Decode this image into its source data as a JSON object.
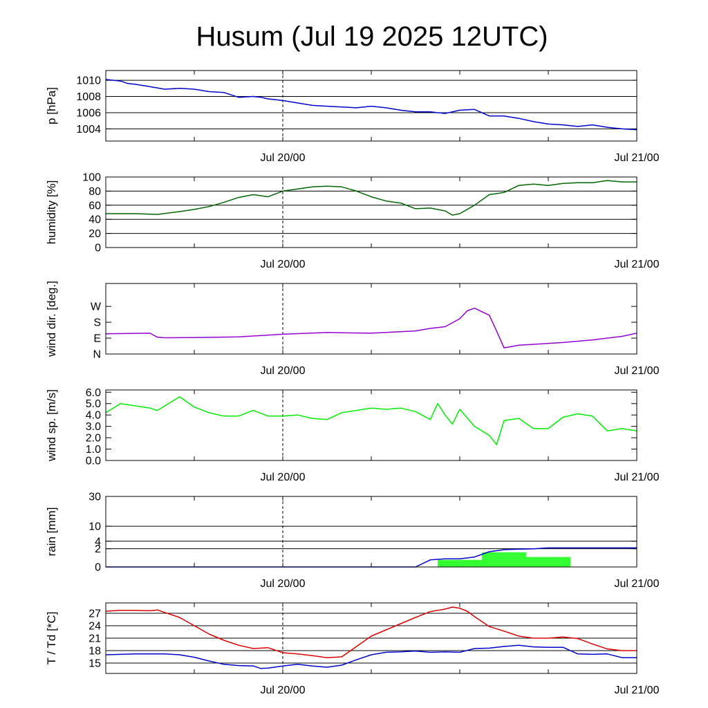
{
  "title": "Husum (Jul 19 2025 12UTC)",
  "colors": {
    "pressure": "#0000cc",
    "humidity": "#006400",
    "wind_dir": "#9400d3",
    "wind_speed": "#00ee00",
    "rain_bar": "#33ff33",
    "rain_sum": "#0000cc",
    "temperature": "#dd0000",
    "dewpoint": "#0000cc",
    "grid": "#000000"
  },
  "chart_data": [
    {
      "type": "line",
      "ylabel": "p [hPa]",
      "x_tick_labels": [
        "Jul 20/00",
        "Jul 21/00"
      ],
      "x_range_hours": [
        0,
        36
      ],
      "ylim": [
        1002.5,
        1011.2
      ],
      "yticks": [
        1004,
        1006,
        1008,
        1010
      ],
      "ytick_labels": [
        "1004",
        "1006",
        "1008",
        "1010"
      ],
      "grid": true,
      "series": [
        {
          "color_key": "pressure",
          "x": [
            0,
            0.5,
            1,
            1.5,
            2,
            3,
            4,
            5,
            6,
            7,
            8,
            9,
            10,
            10.5,
            11,
            12,
            13,
            14,
            15,
            16,
            17,
            18,
            19,
            20,
            21,
            22,
            23,
            24,
            25,
            26,
            27,
            28,
            29,
            30,
            31,
            32,
            33,
            34,
            35,
            36
          ],
          "y": [
            1010.1,
            1010.0,
            1009.9,
            1009.6,
            1009.5,
            1009.2,
            1008.9,
            1009.0,
            1008.9,
            1008.6,
            1008.5,
            1007.9,
            1008.0,
            1007.9,
            1007.7,
            1007.5,
            1007.2,
            1006.9,
            1006.8,
            1006.7,
            1006.6,
            1006.8,
            1006.6,
            1006.3,
            1006.1,
            1006.1,
            1005.9,
            1006.3,
            1006.4,
            1005.6,
            1005.6,
            1005.3,
            1004.9,
            1004.6,
            1004.5,
            1004.3,
            1004.5,
            1004.2,
            1004.0,
            1003.9
          ]
        }
      ]
    },
    {
      "type": "line",
      "ylabel": "humidity [%]",
      "x_tick_labels": [
        "Jul 20/00",
        "Jul 21/00"
      ],
      "x_range_hours": [
        0,
        36
      ],
      "ylim": [
        0,
        100
      ],
      "yticks": [
        0,
        20,
        40,
        60,
        80,
        100
      ],
      "ytick_labels": [
        "0",
        "20",
        "40",
        "60",
        "80",
        "100"
      ],
      "grid": true,
      "series": [
        {
          "color_key": "humidity",
          "x": [
            0,
            2,
            3.5,
            5,
            6,
            7,
            8,
            9,
            10,
            11,
            12,
            14,
            15,
            16,
            17,
            18,
            19,
            20,
            21,
            22,
            23,
            23.5,
            24,
            25,
            26,
            27,
            28,
            29,
            30,
            31,
            32,
            33,
            34,
            35,
            36
          ],
          "y": [
            48,
            48,
            47,
            51,
            54,
            58,
            64,
            71,
            75,
            72,
            80,
            86,
            87,
            86,
            80,
            72,
            66,
            63,
            55,
            56,
            52,
            46,
            48,
            60,
            75,
            78,
            88,
            90,
            88,
            91,
            92,
            92,
            95,
            93,
            93
          ]
        }
      ]
    },
    {
      "type": "line",
      "ylabel": "wind dir. [deg.]",
      "x_tick_labels": [
        "Jul 20/00",
        "Jul 21/00"
      ],
      "x_range_hours": [
        0,
        36
      ],
      "ylim": [
        0,
        400
      ],
      "yticks": [
        0,
        90,
        180,
        270
      ],
      "ytick_labels": [
        "N",
        "E",
        "S",
        "W"
      ],
      "grid": false,
      "series": [
        {
          "color_key": "wind_dir",
          "x": [
            0,
            3,
            3.5,
            4,
            6,
            9,
            12,
            15,
            18,
            21,
            22,
            23,
            24,
            24.5,
            25,
            25.5,
            26,
            26.5,
            27,
            28,
            29,
            31,
            33,
            35,
            36
          ],
          "y": [
            115,
            118,
            95,
            92,
            93,
            97,
            112,
            122,
            118,
            131,
            145,
            155,
            200,
            245,
            260,
            240,
            220,
            130,
            35,
            50,
            55,
            65,
            80,
            100,
            118
          ]
        }
      ]
    },
    {
      "type": "line",
      "ylabel": "wind sp. [m/s]",
      "x_tick_labels": [
        "Jul 20/00",
        "Jul 21/00"
      ],
      "x_range_hours": [
        0,
        36
      ],
      "ylim": [
        0,
        6.2
      ],
      "yticks": [
        0,
        1,
        2,
        3,
        4,
        5,
        6
      ],
      "ytick_labels": [
        "0.0",
        "1.0",
        "2.0",
        "3.0",
        "4.0",
        "5.0",
        "6.0"
      ],
      "grid": false,
      "series": [
        {
          "color_key": "wind_speed",
          "x": [
            0,
            1,
            2,
            3,
            3.5,
            4,
            5,
            6,
            7,
            8,
            9,
            10,
            11,
            12,
            13,
            14,
            15,
            16,
            17,
            18,
            19,
            20,
            21,
            22,
            22.5,
            23,
            23.5,
            24,
            25,
            26,
            26.5,
            27,
            28,
            29,
            30,
            31,
            32,
            33,
            34,
            35,
            36
          ],
          "y": [
            4.2,
            5.0,
            4.8,
            4.6,
            4.4,
            4.8,
            5.6,
            4.7,
            4.2,
            3.9,
            3.9,
            4.4,
            3.9,
            3.9,
            4.0,
            3.7,
            3.6,
            4.2,
            4.4,
            4.6,
            4.5,
            4.6,
            4.3,
            3.6,
            5.0,
            4.0,
            3.2,
            4.5,
            3.0,
            2.2,
            1.4,
            3.5,
            3.7,
            2.8,
            2.8,
            3.8,
            4.1,
            3.9,
            2.6,
            2.8,
            2.6
          ]
        }
      ]
    },
    {
      "type": "bar",
      "ylabel": "rain [mm]",
      "x_tick_labels": [
        "Jul 20/00",
        "Jul 21/00"
      ],
      "x_range_hours": [
        0,
        36
      ],
      "y_scale": "sqrt",
      "ylim": [
        0,
        30
      ],
      "yticks": [
        0,
        2,
        4,
        10,
        30
      ],
      "ytick_labels": [
        "0",
        "2",
        "4",
        "10",
        "30"
      ],
      "grid": true,
      "bars": {
        "color_key": "rain_bar",
        "x_start": [
          22.5,
          25.5,
          28.5
        ],
        "x_end": [
          25.5,
          28.5,
          31.5
        ],
        "values": [
          0.3,
          1.3,
          0.6
        ]
      },
      "series": [
        {
          "color_key": "rain_sum",
          "x": [
            0,
            21,
            22,
            23,
            24,
            25,
            26,
            27,
            28,
            29,
            30,
            31,
            32,
            33,
            34,
            35,
            36
          ],
          "y": [
            0,
            0,
            0.3,
            0.4,
            0.4,
            0.6,
            1.4,
            1.8,
            1.9,
            2.0,
            2.2,
            2.2,
            2.2,
            2.2,
            2.2,
            2.2,
            2.2
          ]
        }
      ]
    },
    {
      "type": "line",
      "ylabel": "T / Td [*C]",
      "x_tick_labels": [
        "Jul 20/00",
        "Jul 21/00"
      ],
      "x_range_hours": [
        0,
        36
      ],
      "ylim": [
        12.5,
        29.5
      ],
      "yticks": [
        15,
        18,
        21,
        24,
        27
      ],
      "ytick_labels": [
        "15",
        "18",
        "21",
        "24",
        "27"
      ],
      "grid": true,
      "series": [
        {
          "color_key": "temperature",
          "x": [
            0,
            1,
            2,
            3,
            3.5,
            4,
            5,
            6,
            7,
            8,
            9,
            10,
            11,
            12,
            13,
            14,
            15,
            16,
            17,
            18,
            19,
            20,
            21,
            22,
            23,
            23.5,
            24,
            24.5,
            25,
            25.5,
            26,
            27,
            28,
            29,
            30,
            31,
            32,
            33,
            34,
            35,
            36
          ],
          "y": [
            27.5,
            27.7,
            27.7,
            27.6,
            27.8,
            27.2,
            26.0,
            24.0,
            22.0,
            20.5,
            19.3,
            18.5,
            18.7,
            17.5,
            17.2,
            16.8,
            16.3,
            16.5,
            19.0,
            21.5,
            23.0,
            24.5,
            26.0,
            27.4,
            28.0,
            28.5,
            28.2,
            27.5,
            26.2,
            25.0,
            23.8,
            22.7,
            21.5,
            21.0,
            21.0,
            21.3,
            20.9,
            19.6,
            18.4,
            18.0,
            18.0
          ]
        },
        {
          "color_key": "dewpoint",
          "x": [
            0,
            2,
            4,
            5,
            6,
            7,
            8,
            9,
            10,
            10.5,
            11,
            12,
            13,
            14,
            15,
            16,
            17,
            18,
            19,
            20,
            21,
            22,
            23,
            24,
            25,
            26,
            27,
            28,
            29,
            30,
            31,
            32,
            33,
            34,
            35,
            36
          ],
          "y": [
            17.0,
            17.2,
            17.2,
            17.0,
            16.4,
            15.5,
            14.7,
            14.4,
            14.3,
            13.7,
            13.8,
            14.3,
            14.7,
            14.3,
            14.0,
            14.5,
            15.8,
            17.0,
            17.6,
            17.7,
            17.9,
            17.6,
            17.7,
            17.6,
            18.5,
            18.6,
            19.0,
            19.3,
            18.9,
            18.8,
            18.8,
            17.2,
            17.1,
            17.2,
            16.3,
            16.3
          ]
        }
      ]
    }
  ]
}
